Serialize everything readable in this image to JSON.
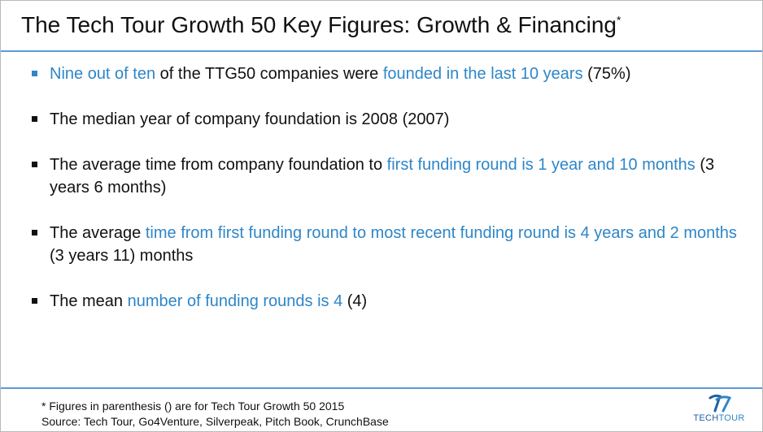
{
  "title": {
    "main": "The Tech Tour Growth 50 Key Figures: Growth & Financing",
    "marker": "*"
  },
  "colors": {
    "accent": "#2e86c8",
    "rule": "#5b9bd5",
    "text": "#111111"
  },
  "bullets": [
    {
      "p1": "Nine out of ten",
      "p2": " of the TTG50 companies were ",
      "p3": "founded in the last 10 years",
      "p4": " (75%)"
    },
    {
      "p1": "The median year of company foundation is 2008 (2007)"
    },
    {
      "p1": "The average time from company foundation to ",
      "p2": "first funding round is 1 year and 10 months",
      "p3": " (3 years 6 months)"
    },
    {
      "p1": "The average ",
      "p2": "time from first funding round to most recent funding round is 4 years and 2 months",
      "p3": " (3 years 11) months"
    },
    {
      "p1": "The mean ",
      "p2": "number of funding rounds is 4",
      "p3": " (4)"
    }
  ],
  "footnote": {
    "line1": "* Figures in parenthesis () are for Tech Tour Growth 50 2015",
    "line2": "Source: Tech Tour, Go4Venture, Silverpeak, Pitch Book, CrunchBase"
  },
  "logo": {
    "part1": "TECH",
    "part2": "TOUR",
    "icon": "tech-tour-tt-logo"
  }
}
